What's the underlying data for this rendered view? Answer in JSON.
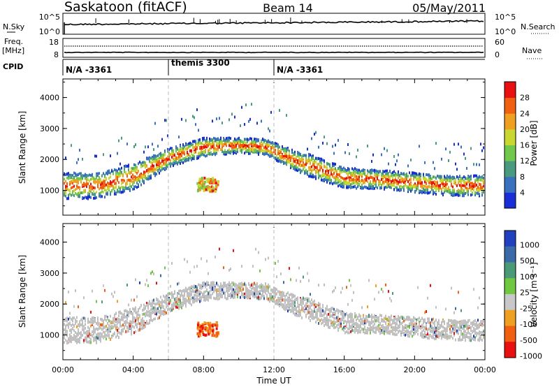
{
  "header": {
    "station": "Saskatoon (fitACF)",
    "beam": "Beam 14",
    "date": "05/May/2011"
  },
  "nsky": {
    "label": "N.Sky",
    "right_label": "N.Search",
    "ticks_left": [
      "10^5",
      "10^0"
    ],
    "ticks_right": [
      "10^5",
      "10^0"
    ]
  },
  "freq": {
    "label_line1": "Freq.",
    "label_line2": "[MHz]",
    "right_label": "Nave",
    "ticks_left": [
      "18",
      "8"
    ],
    "ticks_right": [
      "60",
      "0"
    ]
  },
  "cpid": {
    "label": "CPID",
    "segments": [
      {
        "label": "N/A -3361",
        "start": "00:00"
      },
      {
        "label": "themis 3300",
        "start": "06:00"
      },
      {
        "label": "N/A -3361",
        "start": "12:00"
      }
    ]
  },
  "x_axis": {
    "title": "Time UT",
    "ticks": [
      "00:00",
      "04:00",
      "08:00",
      "12:00",
      "16:00",
      "20:00",
      "00:00"
    ]
  },
  "chart_data": [
    {
      "type": "heatmap",
      "title": "",
      "ylabel": "Slant Range [km]",
      "yticks": [
        "1000",
        "2000",
        "3000",
        "4000"
      ],
      "ylim": [
        200,
        4600
      ],
      "xlim_hours": [
        0,
        24
      ],
      "colorbar": {
        "label": "Power [dB]",
        "ticks": [
          "4",
          "8",
          "12",
          "16",
          "20",
          "24",
          "28"
        ],
        "colors": [
          "#1a2ed8",
          "#3a70c0",
          "#4a9a80",
          "#72c84a",
          "#c8d830",
          "#f0a020",
          "#f06010",
          "#e81010"
        ]
      },
      "band_center_km": [
        [
          0,
          1150
        ],
        [
          2,
          1150
        ],
        [
          4,
          1450
        ],
        [
          6,
          2050
        ],
        [
          8,
          2400
        ],
        [
          10,
          2450
        ],
        [
          11.5,
          2400
        ],
        [
          13,
          2000
        ],
        [
          14.5,
          1700
        ],
        [
          16,
          1400
        ],
        [
          18,
          1350
        ],
        [
          20,
          1250
        ],
        [
          22,
          1150
        ],
        [
          24,
          1150
        ]
      ],
      "band_width_km": [
        [
          0,
          350
        ],
        [
          4,
          350
        ],
        [
          6,
          250
        ],
        [
          8,
          250
        ],
        [
          10,
          200
        ],
        [
          12,
          220
        ],
        [
          14,
          300
        ],
        [
          18,
          250
        ],
        [
          24,
          280
        ]
      ],
      "patches": [
        {
          "x_hours": [
            7.6,
            8.8
          ],
          "y_km": [
            950,
            1400
          ]
        }
      ]
    },
    {
      "type": "heatmap",
      "title": "",
      "ylabel": "Slant Range [km]",
      "yticks": [
        "1000",
        "2000",
        "3000",
        "4000"
      ],
      "ylim": [
        200,
        4600
      ],
      "xlim_hours": [
        0,
        24
      ],
      "colorbar": {
        "label": "Velocity [m s⁻¹]",
        "ticks": [
          "1000",
          "500",
          "100",
          "25",
          "-25",
          "-100",
          "-500",
          "-1000"
        ],
        "colors": [
          "#2040c0",
          "#3a6aa8",
          "#4a9a78",
          "#70c840",
          "#c8c8c8",
          "#f0a020",
          "#f06010",
          "#e81010"
        ]
      },
      "ground_scatter_color": "#c0c0c0"
    }
  ]
}
